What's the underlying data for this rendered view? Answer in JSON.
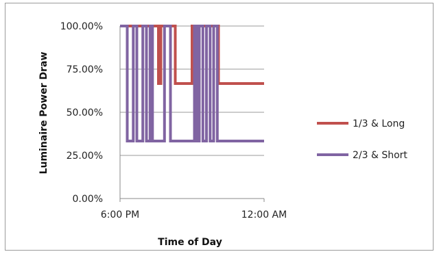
{
  "chart_data": {
    "type": "line",
    "title": "",
    "xlabel": "Time of Day",
    "ylabel": "Luminaire Power Draw",
    "x_ticks": [
      "6:00 PM",
      "12:00 AM"
    ],
    "x_range_hours": [
      18,
      24
    ],
    "y_ticks": [
      "0.00%",
      "25.00%",
      "50.00%",
      "75.00%",
      "100.00%"
    ],
    "ylim": [
      0,
      100
    ],
    "grid": "horizontal",
    "legend_position": "right",
    "series": [
      {
        "name": "1/3 & Long",
        "color": "#c0504d",
        "points": [
          [
            18.0,
            100
          ],
          [
            19.6,
            100
          ],
          [
            19.6,
            66.67
          ],
          [
            19.7,
            66.67
          ],
          [
            19.7,
            100
          ],
          [
            20.3,
            100
          ],
          [
            20.3,
            66.67
          ],
          [
            21.0,
            66.67
          ],
          [
            21.0,
            100
          ],
          [
            22.1,
            100
          ],
          [
            22.1,
            66.67
          ],
          [
            24.0,
            66.67
          ]
        ]
      },
      {
        "name": "2/3 Short",
        "legend_label": "2/3 & Short",
        "color": "#8064a2",
        "points": [
          [
            18.0,
            100
          ],
          [
            18.3,
            100
          ],
          [
            18.3,
            33.33
          ],
          [
            18.55,
            33.33
          ],
          [
            18.55,
            100
          ],
          [
            18.7,
            100
          ],
          [
            18.7,
            33.33
          ],
          [
            18.95,
            33.33
          ],
          [
            18.95,
            100
          ],
          [
            19.1,
            100
          ],
          [
            19.1,
            33.33
          ],
          [
            19.25,
            33.33
          ],
          [
            19.25,
            100
          ],
          [
            19.35,
            100
          ],
          [
            19.35,
            33.33
          ],
          [
            19.85,
            33.33
          ],
          [
            19.85,
            100
          ],
          [
            20.1,
            100
          ],
          [
            20.1,
            33.33
          ],
          [
            21.1,
            33.33
          ],
          [
            21.1,
            100
          ],
          [
            21.2,
            100
          ],
          [
            21.2,
            33.33
          ],
          [
            21.3,
            33.33
          ],
          [
            21.3,
            100
          ],
          [
            21.45,
            100
          ],
          [
            21.45,
            33.33
          ],
          [
            21.6,
            33.33
          ],
          [
            21.6,
            100
          ],
          [
            21.75,
            100
          ],
          [
            21.75,
            33.33
          ],
          [
            21.9,
            33.33
          ],
          [
            21.9,
            100
          ],
          [
            22.05,
            100
          ],
          [
            22.05,
            33.33
          ],
          [
            24.0,
            33.33
          ]
        ]
      }
    ]
  }
}
